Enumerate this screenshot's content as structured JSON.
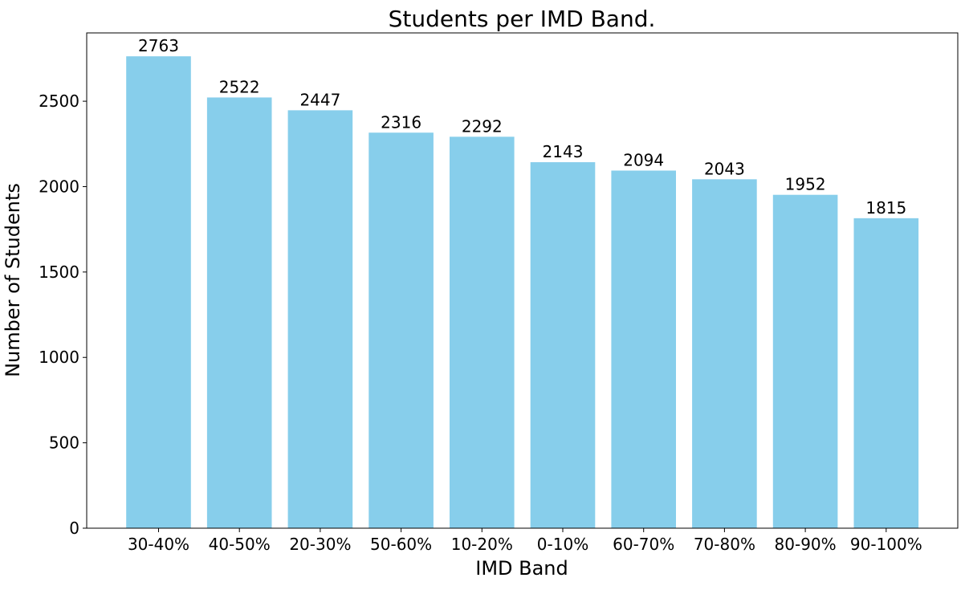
{
  "chart_data": {
    "type": "bar",
    "title": "Students per IMD Band.",
    "xlabel": "IMD Band",
    "ylabel": "Number of Students",
    "categories": [
      "30-40%",
      "40-50%",
      "20-30%",
      "50-60%",
      "10-20%",
      "0-10%",
      "60-70%",
      "70-80%",
      "80-90%",
      "90-100%"
    ],
    "values": [
      2763,
      2522,
      2447,
      2316,
      2292,
      2143,
      2094,
      2043,
      1952,
      1815
    ],
    "ylim": [
      0,
      2900
    ],
    "yticks": [
      0,
      500,
      1000,
      1500,
      2000,
      2500
    ],
    "grid": false,
    "bar_color": "#87CEEB"
  }
}
